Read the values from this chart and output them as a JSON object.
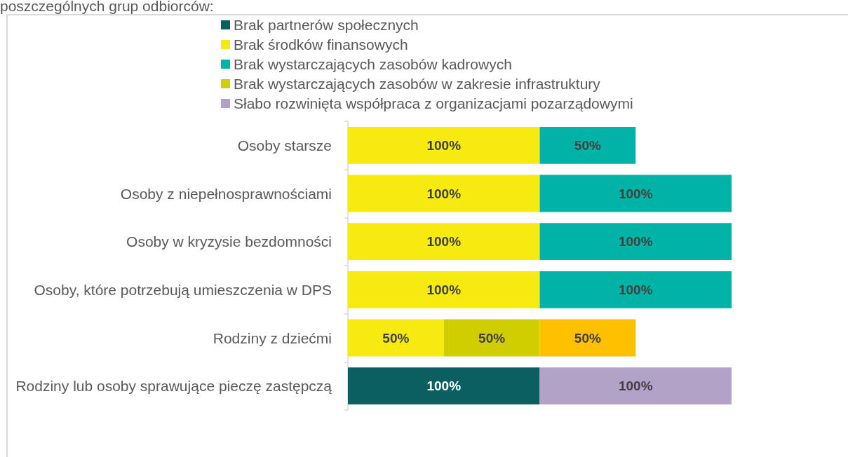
{
  "chart_data": {
    "type": "bar",
    "orientation": "horizontal",
    "stacked": true,
    "title": "poszczególnych grup odbiorców:",
    "categories": [
      "Osoby starsze",
      "Osoby z niepełnosprawnościami",
      "Osoby w kryzysie bezdomności",
      "Osoby, które potrzebują umieszczenia w DPS",
      "Rodziny z dziećmi",
      "Rodziny lub osoby sprawujące pieczę zastępczą"
    ],
    "series": [
      {
        "name": "Brak partnerów społecznych",
        "color": "#0b5f60",
        "values": [
          null,
          null,
          null,
          null,
          null,
          100
        ],
        "value_labels": [
          null,
          null,
          null,
          null,
          null,
          "100%"
        ]
      },
      {
        "name": "Brak środków finansowych",
        "color": "#f7ea10",
        "values": [
          100,
          100,
          100,
          100,
          50,
          null
        ],
        "value_labels": [
          "100%",
          "100%",
          "100%",
          "100%",
          "50%",
          null
        ]
      },
      {
        "name": "Brak wystarczających zasobów kadrowych",
        "color": "#00b3a6",
        "values": [
          50,
          100,
          100,
          100,
          null,
          null
        ],
        "value_labels": [
          "50%",
          "100%",
          "100%",
          "100%",
          null,
          null
        ]
      },
      {
        "name": "Brak wystarczających zasobów w zakresie infrastruktury",
        "color": "#d0cd00",
        "values": [
          null,
          null,
          null,
          null,
          50,
          null
        ],
        "value_labels": [
          null,
          null,
          null,
          null,
          "50%",
          null
        ]
      },
      {
        "name": "Słabo rozwinięta współpraca z organizacjami pozarządowymi",
        "color": "#b2a2c7",
        "values": [
          null,
          null,
          null,
          null,
          null,
          100
        ],
        "value_labels": [
          null,
          null,
          null,
          null,
          null,
          "100%"
        ]
      },
      {
        "color": "#ffc000",
        "values": [
          null,
          null,
          null,
          null,
          50,
          null
        ],
        "value_labels": [
          null,
          null,
          null,
          null,
          "50%",
          null
        ]
      }
    ],
    "legend": "top",
    "tick_labels": "y",
    "grid": false
  }
}
